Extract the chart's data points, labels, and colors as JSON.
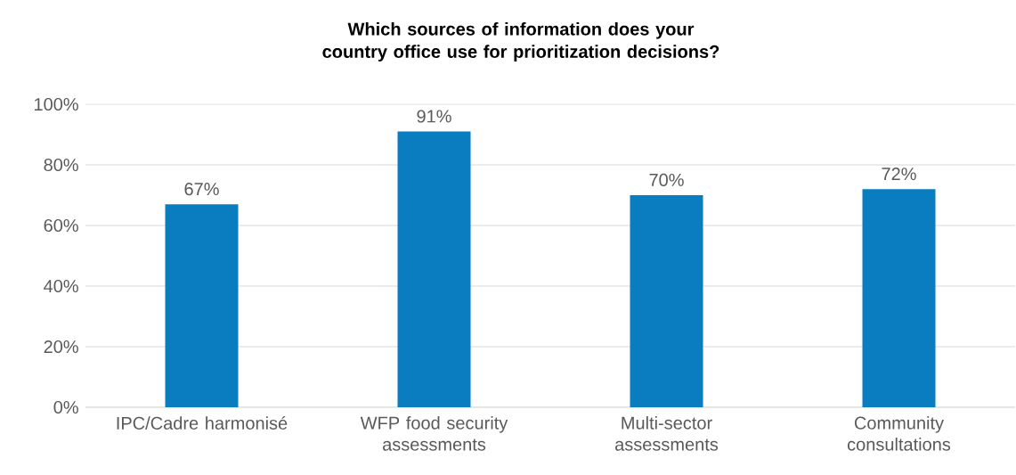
{
  "chart_data": {
    "type": "bar",
    "title": "Which sources of information does your country office use for prioritization decisions?",
    "categories": [
      "IPC/Cadre harmonisé",
      "WFP food security assessments",
      "Multi-sector assessments",
      "Community consultations"
    ],
    "values": [
      67,
      91,
      70,
      72
    ],
    "value_labels": [
      "67%",
      "91%",
      "70%",
      "72%"
    ],
    "color": "#0a7dc1",
    "ylim": [
      0,
      100
    ],
    "yticks": [
      {
        "value": 0,
        "label": "0%"
      },
      {
        "value": 20,
        "label": "20%"
      },
      {
        "value": 40,
        "label": "40%"
      },
      {
        "value": 60,
        "label": "60%"
      },
      {
        "value": 80,
        "label": "80%"
      },
      {
        "value": 100,
        "label": "100%"
      }
    ],
    "grid": "y"
  }
}
